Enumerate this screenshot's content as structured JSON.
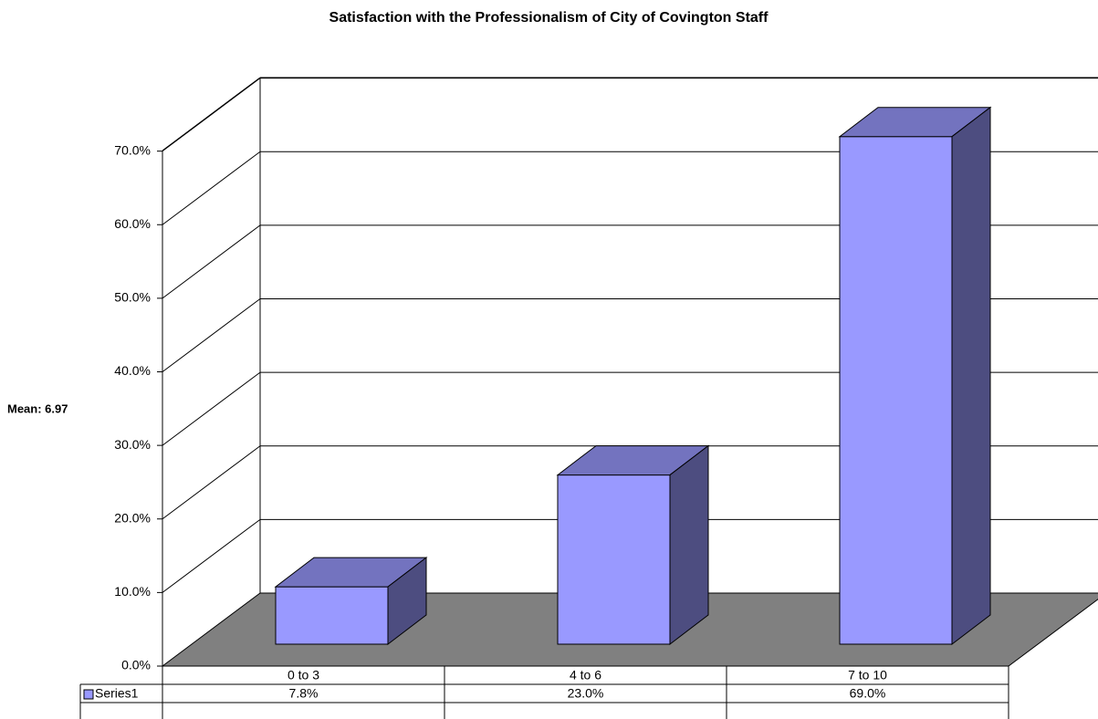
{
  "chart_data": {
    "type": "bar3d",
    "title": "Satisfaction with the Professionalism of City of Covington Staff",
    "annotation": "Mean: 6.97",
    "categories": [
      "0 to 3",
      "4 to 6",
      "7 to 10"
    ],
    "series": [
      {
        "name": "Series1",
        "color": "#9999ff",
        "values": [
          7.8,
          23.0,
          69.0
        ],
        "value_labels": [
          "7.8%",
          "23.0%",
          "69.0%"
        ]
      }
    ],
    "ylim": [
      0,
      80
    ],
    "yticks": [
      {
        "value": 0,
        "label": "0.0%"
      },
      {
        "value": 10,
        "label": "10.0%"
      },
      {
        "value": 20,
        "label": "20.0%"
      },
      {
        "value": 30,
        "label": "30.0%"
      },
      {
        "value": 40,
        "label": "40.0%"
      },
      {
        "value": 50,
        "label": "50.0%"
      },
      {
        "value": 60,
        "label": "60.0%"
      },
      {
        "value": 70,
        "label": "70.0%"
      }
    ],
    "grid": true,
    "floor_color": "#808080"
  }
}
